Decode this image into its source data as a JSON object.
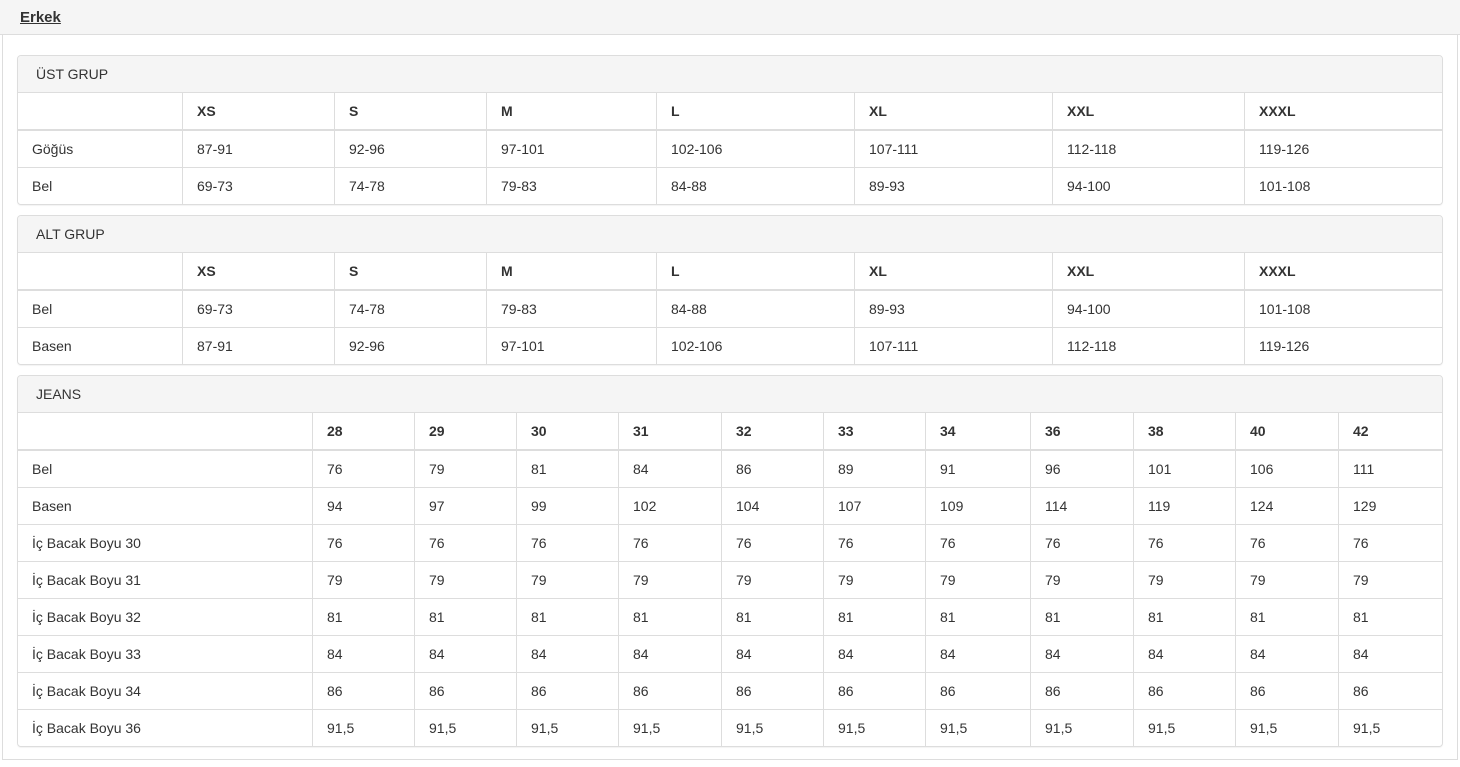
{
  "tabs": [
    {
      "label": "Erkek",
      "active": true
    }
  ],
  "sections": [
    {
      "title": "ÜST GRUP",
      "columns": [
        "",
        "XS",
        "S",
        "M",
        "L",
        "XL",
        "XXL",
        "XXXL"
      ],
      "rows": [
        {
          "label": "Göğüs",
          "values": [
            "87-91",
            "92-96",
            "97-101",
            "102-106",
            "107-111",
            "112-118",
            "119-126"
          ]
        },
        {
          "label": "Bel",
          "values": [
            "69-73",
            "74-78",
            "79-83",
            "84-88",
            "89-93",
            "94-100",
            "101-108"
          ]
        }
      ]
    },
    {
      "title": "ALT GRUP",
      "columns": [
        "",
        "XS",
        "S",
        "M",
        "L",
        "XL",
        "XXL",
        "XXXL"
      ],
      "rows": [
        {
          "label": "Bel",
          "values": [
            "69-73",
            "74-78",
            "79-83",
            "84-88",
            "89-93",
            "94-100",
            "101-108"
          ]
        },
        {
          "label": "Basen",
          "values": [
            "87-91",
            "92-96",
            "97-101",
            "102-106",
            "107-111",
            "112-118",
            "119-126"
          ]
        }
      ]
    },
    {
      "title": "JEANS",
      "columns": [
        "",
        "28",
        "29",
        "30",
        "31",
        "32",
        "33",
        "34",
        "36",
        "38",
        "40",
        "42"
      ],
      "rows": [
        {
          "label": "Bel",
          "values": [
            "76",
            "79",
            "81",
            "84",
            "86",
            "89",
            "91",
            "96",
            "101",
            "106",
            "111"
          ]
        },
        {
          "label": "Basen",
          "values": [
            "94",
            "97",
            "99",
            "102",
            "104",
            "107",
            "109",
            "114",
            "119",
            "124",
            "129"
          ]
        },
        {
          "label": "İç Bacak Boyu 30",
          "values": [
            "76",
            "76",
            "76",
            "76",
            "76",
            "76",
            "76",
            "76",
            "76",
            "76",
            "76"
          ]
        },
        {
          "label": "İç Bacak Boyu 31",
          "values": [
            "79",
            "79",
            "79",
            "79",
            "79",
            "79",
            "79",
            "79",
            "79",
            "79",
            "79"
          ]
        },
        {
          "label": "İç Bacak Boyu 32",
          "values": [
            "81",
            "81",
            "81",
            "81",
            "81",
            "81",
            "81",
            "81",
            "81",
            "81",
            "81"
          ]
        },
        {
          "label": "İç Bacak Boyu 33",
          "values": [
            "84",
            "84",
            "84",
            "84",
            "84",
            "84",
            "84",
            "84",
            "84",
            "84",
            "84"
          ]
        },
        {
          "label": "İç Bacak Boyu 34",
          "values": [
            "86",
            "86",
            "86",
            "86",
            "86",
            "86",
            "86",
            "86",
            "86",
            "86",
            "86"
          ]
        },
        {
          "label": "İç Bacak Boyu 36",
          "values": [
            "91,5",
            "91,5",
            "91,5",
            "91,5",
            "91,5",
            "91,5",
            "91,5",
            "91,5",
            "91,5",
            "91,5",
            "91,5"
          ]
        }
      ]
    }
  ],
  "colors": {
    "tabbar_bg": "#f5f5f5",
    "panel_heading_bg": "#f5f5f5",
    "border": "#dddddd",
    "text": "#333333"
  }
}
